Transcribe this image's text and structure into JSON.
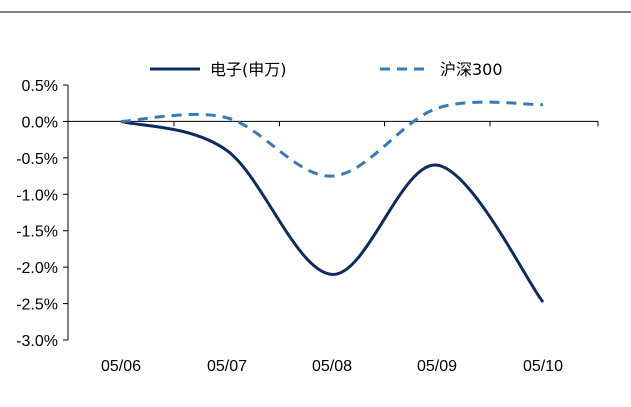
{
  "chart_data": {
    "type": "line",
    "categories": [
      "05/06",
      "05/07",
      "05/08",
      "05/09",
      "05/10"
    ],
    "series": [
      {
        "name": "电子(申万)",
        "values": [
          0.0,
          -0.4,
          -2.1,
          -0.6,
          -2.48
        ],
        "color": "#0d2b5e",
        "dash": "solid"
      },
      {
        "name": "沪深300",
        "values": [
          0.0,
          0.05,
          -0.75,
          0.18,
          0.23
        ],
        "color": "#3a78b8",
        "dash": "dashed"
      }
    ],
    "y_ticks": [
      "0.5%",
      "0.0%",
      "-0.5%",
      "-1.0%",
      "-1.5%",
      "-2.0%",
      "-2.5%",
      "-3.0%"
    ],
    "y_tick_values": [
      0.5,
      0.0,
      -0.5,
      -1.0,
      -1.5,
      -2.0,
      -2.5,
      -3.0
    ],
    "ylim": [
      -3.0,
      0.5
    ],
    "legend_position": "top",
    "grid": false
  }
}
